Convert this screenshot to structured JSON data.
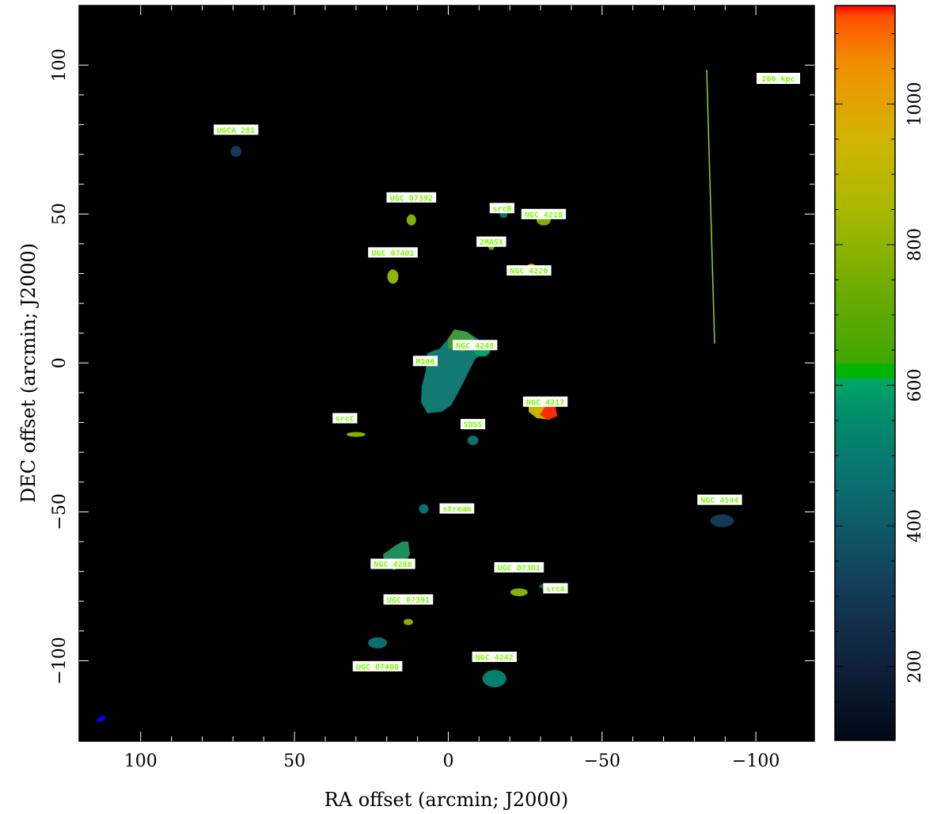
{
  "chart_data": {
    "type": "heatmap",
    "title": "",
    "xlabel": "RA offset (arcmin; J2000)",
    "ylabel": "DEC offset (arcmin; J2000)",
    "xlim": [
      120,
      -119
    ],
    "ylim": [
      -127,
      120
    ],
    "xticks": [
      100,
      50,
      0,
      -50,
      -100
    ],
    "yticks": [
      100,
      50,
      0,
      -50,
      -100
    ],
    "xtick_labels": [
      "100",
      "50",
      "0",
      "−50",
      "−100"
    ],
    "ytick_labels": [
      "100",
      "50",
      "0",
      "−50",
      "−100"
    ],
    "colorbar": {
      "min": 95,
      "max": 1140,
      "ticks": [
        200,
        400,
        600,
        800,
        1000
      ],
      "tick_labels": [
        "200",
        "400",
        "600",
        "800",
        "1000"
      ]
    },
    "sources": [
      {
        "label": "UGCA 281",
        "ra": 69,
        "dec": 71,
        "value": 300
      },
      {
        "label": "UGC 07392",
        "ra": 12,
        "dec": 48,
        "value": 780
      },
      {
        "label": "srcB",
        "ra": -18,
        "dec": 50,
        "value": 450
      },
      {
        "label": "NGC 4218",
        "ra": -31,
        "dec": 48,
        "value": 770
      },
      {
        "label": "2MASX",
        "ra": -14,
        "dec": 39,
        "value": 720
      },
      {
        "label": "UGC 07401",
        "ra": 18,
        "dec": 29,
        "value": 800
      },
      {
        "label": "NGC 4220",
        "ra": -27,
        "dec": 32,
        "value": 1020
      },
      {
        "label": "M106",
        "ra": 0,
        "dec": 0,
        "value": 400
      },
      {
        "label": "NGC 4248",
        "ra": -11,
        "dec": 4,
        "value": 600
      },
      {
        "label": "NGC 4217",
        "ra": -30,
        "dec": -15,
        "value": 1050
      },
      {
        "label": "srcC",
        "ra": 30,
        "dec": -24,
        "value": 780
      },
      {
        "label": "SDSS",
        "ra": -8,
        "dec": -26,
        "value": 450
      },
      {
        "label": "NGC 4144",
        "ra": -89,
        "dec": -53,
        "value": 300
      },
      {
        "label": "stream",
        "ra": 8,
        "dec": -49,
        "value": 450
      },
      {
        "label": "NGC 4288",
        "ra": 18,
        "dec": -66,
        "value": 480
      },
      {
        "label": "UGC 07301",
        "ra": -23,
        "dec": -77,
        "value": 780
      },
      {
        "label": "UGC 07391",
        "ra": 13,
        "dec": -87,
        "value": 780
      },
      {
        "label": "srcA",
        "ra": -31,
        "dec": -75,
        "value": 400
      },
      {
        "label": "UGC 07408",
        "ra": 23,
        "dec": -94,
        "value": 450
      },
      {
        "label": "NGC 4242",
        "ra": -15,
        "dec": -106,
        "value": 500
      }
    ],
    "scale_bar": {
      "label": "200 kpc",
      "length_arcmin": 94
    },
    "colors": {
      "background": "#000000",
      "label_fill": "#ffffff",
      "label_text": "#7cfc00",
      "scale_bar": "#9acd32",
      "beam": "#0000ff"
    }
  }
}
